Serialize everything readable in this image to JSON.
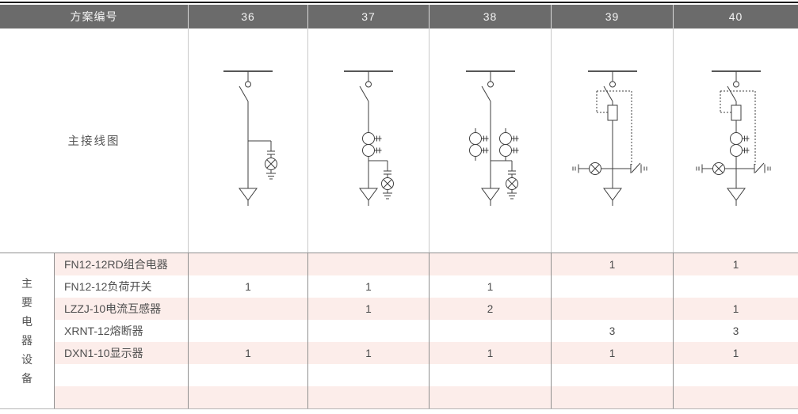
{
  "table": {
    "header": {
      "row_label": "方案编号",
      "scheme_numbers": [
        "36",
        "37",
        "38",
        "39",
        "40"
      ]
    },
    "diagram_row": {
      "label": "主接线图"
    },
    "equipment_section": {
      "vertical_label": "主要电器设备",
      "vertical_label_chars": [
        "主",
        "要",
        "电",
        "器",
        "设",
        "备"
      ],
      "rows": [
        {
          "name": "FN12-12RD组合电器",
          "quantities": [
            "",
            "",
            "",
            "1",
            "1"
          ]
        },
        {
          "name": "FN12-12负荷开关",
          "quantities": [
            "1",
            "1",
            "1",
            "",
            ""
          ]
        },
        {
          "name": "LZZJ-10电流互感器",
          "quantities": [
            "",
            "1",
            "2",
            "",
            "1"
          ]
        },
        {
          "name": "XRNT-12熔断器",
          "quantities": [
            "",
            "",
            "",
            "3",
            "3"
          ]
        },
        {
          "name": "DXN1-10显示器",
          "quantities": [
            "1",
            "1",
            "1",
            "1",
            "1"
          ]
        },
        {
          "name": "",
          "quantities": [
            "",
            "",
            "",
            "",
            ""
          ]
        },
        {
          "name": "",
          "quantities": [
            "",
            "",
            "",
            "",
            ""
          ]
        }
      ]
    }
  },
  "diagrams": {
    "schemes": [
      {
        "id": "36",
        "components": {
          "load_switch": true,
          "fuse_combination": false,
          "current_transformers": 0,
          "display_lamp": true,
          "earthing_switch": false
        }
      },
      {
        "id": "37",
        "components": {
          "load_switch": true,
          "fuse_combination": false,
          "current_transformers": 1,
          "display_lamp": true,
          "earthing_switch": false
        }
      },
      {
        "id": "38",
        "components": {
          "load_switch": true,
          "fuse_combination": false,
          "current_transformers": 2,
          "display_lamp": true,
          "earthing_switch": false
        }
      },
      {
        "id": "39",
        "components": {
          "load_switch": true,
          "fuse_combination": true,
          "current_transformers": 0,
          "display_lamp": true,
          "earthing_switch": true
        }
      },
      {
        "id": "40",
        "components": {
          "load_switch": true,
          "fuse_combination": true,
          "current_transformers": 1,
          "display_lamp": true,
          "earthing_switch": true
        }
      }
    ]
  },
  "colors": {
    "header_bg": "#6b6b6b",
    "header_text": "#f4f4f4",
    "row_pink": "#fcedea",
    "grid_dark": "#1c1c1c",
    "grid_medium": "#8f8f8f",
    "grid_light": "#c9c9c9",
    "diagram_stroke": "#3f3f3f",
    "text_color": "#555555"
  }
}
